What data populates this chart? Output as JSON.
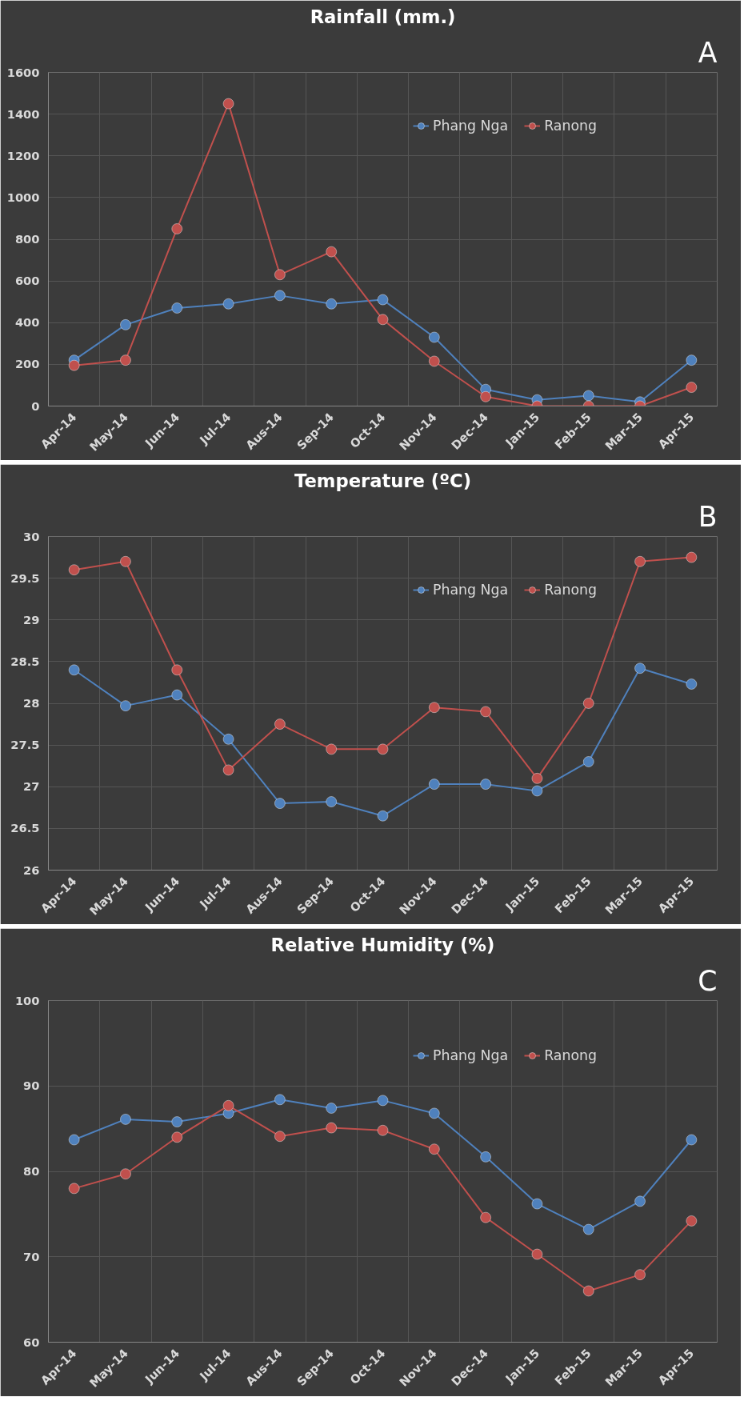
{
  "chart_data": [
    {
      "type": "line",
      "title": "Rainfall (mm.)",
      "annotations": [
        "A"
      ],
      "categories": [
        "Apr-14",
        "May-14",
        "Jun-14",
        "Jul-14",
        "Aus-14",
        "Sep-14",
        "Oct-14",
        "Nov-14",
        "Dec-14",
        "Jan-15",
        "Feb-15",
        "Mar-15",
        "Apr-15"
      ],
      "ylim": [
        0,
        1600
      ],
      "yticks": [
        0,
        200,
        400,
        600,
        800,
        1000,
        1200,
        1400,
        1600
      ],
      "grid": true,
      "legend": "top right",
      "marker": "circle",
      "series": [
        {
          "name": "Phang Nga",
          "color": "#4f81bd",
          "values": [
            220,
            390,
            470,
            490,
            530,
            490,
            510,
            330,
            80,
            30,
            50,
            20,
            220
          ]
        },
        {
          "name": "Ranong",
          "color": "#c0504d",
          "values": [
            195,
            220,
            850,
            1450,
            630,
            740,
            415,
            215,
            45,
            0,
            0,
            0,
            90
          ]
        }
      ]
    },
    {
      "type": "line",
      "title": "Temperature (ºC)",
      "annotations": [
        "B"
      ],
      "categories": [
        "Apr-14",
        "May-14",
        "Jun-14",
        "Jul-14",
        "Aus-14",
        "Sep-14",
        "Oct-14",
        "Nov-14",
        "Dec-14",
        "Jan-15",
        "Feb-15",
        "Mar-15",
        "Apr-15"
      ],
      "ylim": [
        26,
        30
      ],
      "yticks": [
        26,
        26.5,
        27,
        27.5,
        28,
        28.5,
        29,
        29.5,
        30
      ],
      "grid": true,
      "legend": "top right",
      "marker": "circle",
      "series": [
        {
          "name": "Phang Nga",
          "color": "#4f81bd",
          "values": [
            28.4,
            27.97,
            28.1,
            27.57,
            26.8,
            26.82,
            26.65,
            27.03,
            27.03,
            26.95,
            27.3,
            28.42,
            28.23
          ]
        },
        {
          "name": "Ranong",
          "color": "#c0504d",
          "values": [
            29.6,
            29.7,
            28.4,
            27.2,
            27.75,
            27.45,
            27.45,
            27.95,
            27.9,
            27.1,
            28.0,
            29.7,
            29.75
          ]
        }
      ]
    },
    {
      "type": "line",
      "title": "Relative Humidity (%)",
      "annotations": [
        "C"
      ],
      "categories": [
        "Apr-14",
        "May-14",
        "Jun-14",
        "Jul-14",
        "Aus-14",
        "Sep-14",
        "Oct-14",
        "Nov-14",
        "Dec-14",
        "Jan-15",
        "Feb-15",
        "Mar-15",
        "Apr-15"
      ],
      "ylim": [
        60,
        100
      ],
      "yticks": [
        60,
        70,
        80,
        90,
        100
      ],
      "grid": true,
      "legend": "top right",
      "marker": "circle",
      "series": [
        {
          "name": "Phang Nga",
          "color": "#4f81bd",
          "values": [
            83.7,
            86.1,
            85.8,
            86.8,
            88.4,
            87.4,
            88.3,
            86.8,
            81.7,
            76.2,
            73.2,
            76.5,
            83.7
          ]
        },
        {
          "name": "Ranong",
          "color": "#c0504d",
          "values": [
            78,
            79.7,
            84,
            87.7,
            84.1,
            85.1,
            84.8,
            82.6,
            74.6,
            70.3,
            66,
            67.9,
            74.2
          ]
        }
      ]
    }
  ]
}
